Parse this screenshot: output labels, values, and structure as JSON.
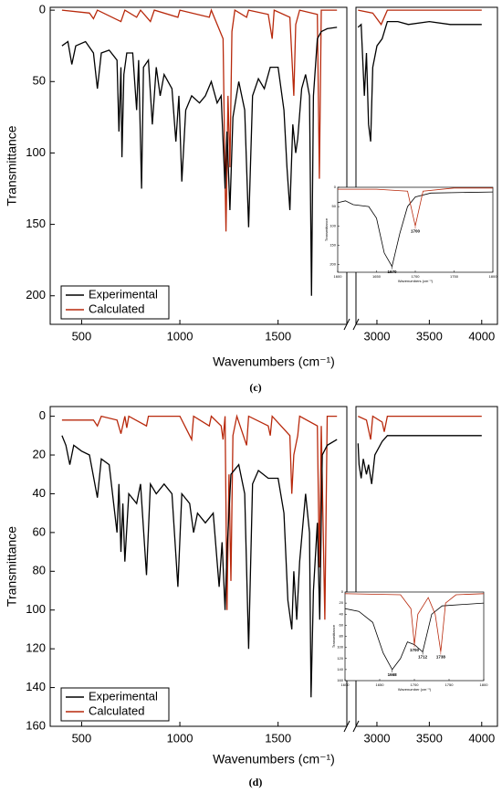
{
  "chart_data": [
    {
      "type": "line",
      "panel_label": "(c)",
      "xlabel": "Wavenumbers (cm⁻¹)",
      "ylabel": "Transmittance",
      "xlim": [
        340,
        4150
      ],
      "xbreak": [
        1850,
        2800
      ],
      "xticks": [
        500,
        1000,
        1500,
        3000,
        3500,
        4000
      ],
      "ylim": [
        -2,
        220
      ],
      "y_inverted": true,
      "yticks": [
        0,
        50,
        100,
        150,
        200
      ],
      "legend": "lower left",
      "series": [
        {
          "name": "Experimental",
          "color": "#000000",
          "x": [
            400,
            430,
            450,
            470,
            520,
            560,
            580,
            600,
            640,
            680,
            690,
            700,
            705,
            715,
            730,
            760,
            780,
            790,
            805,
            815,
            840,
            860,
            880,
            900,
            920,
            960,
            980,
            995,
            1010,
            1030,
            1060,
            1100,
            1130,
            1160,
            1190,
            1210,
            1230,
            1240,
            1255,
            1270,
            1300,
            1330,
            1350,
            1370,
            1400,
            1430,
            1460,
            1500,
            1530,
            1545,
            1560,
            1575,
            1590,
            1600,
            1620,
            1640,
            1660,
            1670,
            1680,
            1700,
            1720,
            1750,
            1800,
            2820,
            2850,
            2880,
            2900,
            2920,
            2940,
            2960,
            3000,
            3050,
            3100,
            3200,
            3300,
            3500,
            3700,
            4000
          ],
          "values": [
            25,
            22,
            38,
            25,
            22,
            30,
            55,
            30,
            28,
            35,
            85,
            40,
            103,
            45,
            30,
            30,
            70,
            35,
            125,
            40,
            35,
            80,
            40,
            60,
            45,
            55,
            92,
            60,
            120,
            70,
            60,
            65,
            60,
            50,
            65,
            60,
            125,
            85,
            140,
            75,
            50,
            70,
            152,
            60,
            48,
            55,
            40,
            40,
            70,
            110,
            140,
            80,
            100,
            90,
            55,
            45,
            60,
            200,
            60,
            20,
            15,
            13,
            12,
            12,
            10,
            60,
            30,
            80,
            92,
            40,
            25,
            20,
            8,
            8,
            10,
            8,
            10,
            10
          ]
        },
        {
          "name": "Calculated",
          "color": "#b8290c",
          "x": [
            400,
            540,
            560,
            580,
            700,
            720,
            780,
            800,
            850,
            870,
            990,
            1000,
            1150,
            1160,
            1220,
            1230,
            1235,
            1245,
            1255,
            1265,
            1280,
            1340,
            1350,
            1450,
            1470,
            1480,
            1560,
            1580,
            1590,
            1610,
            1700,
            1710,
            1720,
            1800,
            2820,
            2960,
            3040,
            3100,
            4000
          ],
          "values": [
            0,
            2,
            6,
            0,
            8,
            0,
            5,
            0,
            8,
            0,
            5,
            0,
            5,
            0,
            20,
            120,
            155,
            60,
            110,
            15,
            0,
            5,
            0,
            3,
            20,
            0,
            5,
            60,
            10,
            0,
            3,
            118,
            0,
            0,
            0,
            2,
            10,
            0,
            0
          ]
        }
      ],
      "inset": {
        "xlabel": "Wavenumbers (cm⁻¹)",
        "ylabel": "Transmittance",
        "xlim": [
          1600,
          1800
        ],
        "xticks": [
          1600,
          1650,
          1700,
          1750,
          1800
        ],
        "ylim": [
          0,
          220
        ],
        "yticks": [
          0,
          50,
          100,
          150,
          200
        ],
        "series": [
          {
            "color": "#000000",
            "x": [
              1600,
              1610,
              1620,
              1640,
              1650,
              1660,
              1670,
              1680,
              1690,
              1700,
              1720,
              1800
            ],
            "values": [
              40,
              35,
              45,
              50,
              80,
              170,
              205,
              120,
              50,
              25,
              15,
              12
            ]
          },
          {
            "color": "#b8290c",
            "x": [
              1600,
              1650,
              1690,
              1700,
              1710,
              1750,
              1800
            ],
            "values": [
              5,
              5,
              10,
              100,
              10,
              2,
              2
            ]
          }
        ],
        "annotations": [
          {
            "label": "1670",
            "x": 1670,
            "y": 205,
            "color": "#000000"
          },
          {
            "label": "1700",
            "x": 1700,
            "y": 100,
            "color": "#b8290c"
          }
        ]
      }
    },
    {
      "type": "line",
      "panel_label": "(d)",
      "xlabel": "Wavenumbers (cm⁻¹)",
      "ylabel": "Transmittance",
      "xlim": [
        340,
        4150
      ],
      "xbreak": [
        1850,
        2800
      ],
      "xticks": [
        500,
        1000,
        1500,
        3000,
        3500,
        4000
      ],
      "ylim": [
        -5,
        160
      ],
      "y_inverted": true,
      "yticks": [
        0,
        20,
        40,
        60,
        80,
        100,
        120,
        140,
        160
      ],
      "legend": "lower left",
      "series": [
        {
          "name": "Experimental",
          "color": "#000000",
          "x": [
            400,
            420,
            440,
            460,
            500,
            540,
            580,
            600,
            640,
            680,
            690,
            700,
            710,
            720,
            740,
            780,
            800,
            830,
            850,
            880,
            920,
            960,
            990,
            1010,
            1050,
            1070,
            1090,
            1130,
            1170,
            1200,
            1215,
            1230,
            1240,
            1260,
            1300,
            1330,
            1350,
            1370,
            1400,
            1450,
            1500,
            1530,
            1550,
            1570,
            1580,
            1595,
            1610,
            1640,
            1660,
            1668,
            1680,
            1700,
            1712,
            1725,
            1750,
            1800,
            2820,
            2830,
            2850,
            2870,
            2900,
            2920,
            2950,
            2980,
            3050,
            3100,
            3500,
            4000
          ],
          "values": [
            10,
            15,
            25,
            15,
            18,
            20,
            42,
            22,
            25,
            60,
            35,
            70,
            45,
            75,
            40,
            45,
            35,
            82,
            35,
            40,
            35,
            40,
            88,
            40,
            45,
            60,
            50,
            55,
            50,
            88,
            65,
            100,
            70,
            30,
            25,
            40,
            120,
            35,
            28,
            32,
            32,
            50,
            95,
            110,
            80,
            105,
            75,
            40,
            60,
            145,
            90,
            55,
            105,
            20,
            15,
            12,
            14,
            25,
            32,
            22,
            30,
            25,
            35,
            20,
            13,
            10,
            10,
            10
          ]
        },
        {
          "name": "Calculated",
          "color": "#b8290c",
          "x": [
            400,
            560,
            580,
            600,
            680,
            700,
            720,
            730,
            740,
            830,
            840,
            1000,
            1060,
            1070,
            1150,
            1160,
            1210,
            1220,
            1230,
            1240,
            1250,
            1260,
            1270,
            1290,
            1340,
            1350,
            1450,
            1460,
            1470,
            1560,
            1570,
            1580,
            1600,
            1610,
            1700,
            1710,
            1720,
            1738,
            1750,
            1800,
            2820,
            2900,
            2940,
            2960,
            3050,
            3070,
            3100,
            4000
          ],
          "values": [
            2,
            2,
            5,
            0,
            2,
            9,
            0,
            6,
            0,
            5,
            0,
            0,
            12,
            0,
            5,
            0,
            5,
            12,
            0,
            100,
            30,
            85,
            10,
            0,
            15,
            0,
            5,
            10,
            0,
            10,
            40,
            20,
            10,
            0,
            5,
            78,
            5,
            105,
            0,
            0,
            0,
            2,
            12,
            0,
            3,
            8,
            0,
            0
          ]
        }
      ],
      "inset": {
        "xlabel": "Wavenumber (cm⁻¹)",
        "ylabel": "Transmittance",
        "xlim": [
          1600,
          1800
        ],
        "xticks": [
          1600,
          1650,
          1700,
          1750,
          1800
        ],
        "ylim": [
          0,
          160
        ],
        "yticks": [
          0,
          20,
          40,
          60,
          80,
          100,
          120,
          140,
          160
        ],
        "series": [
          {
            "color": "#000000",
            "x": [
              1600,
              1620,
              1640,
              1655,
              1668,
              1680,
              1690,
              1700,
              1712,
              1725,
              1740,
              1800
            ],
            "values": [
              30,
              35,
              55,
              110,
              140,
              120,
              90,
              95,
              108,
              40,
              25,
              20
            ]
          },
          {
            "color": "#b8290c",
            "x": [
              1600,
              1680,
              1695,
              1700,
              1705,
              1720,
              1730,
              1738,
              1745,
              1760,
              1800
            ],
            "values": [
              3,
              5,
              30,
              95,
              40,
              10,
              40,
              108,
              20,
              5,
              3
            ]
          }
        ],
        "annotations": [
          {
            "label": "1668",
            "x": 1668,
            "y": 140,
            "color": "#000000"
          },
          {
            "label": "1700",
            "x": 1700,
            "y": 95,
            "color": "#b8290c"
          },
          {
            "label": "1712",
            "x": 1712,
            "y": 108,
            "color": "#000000"
          },
          {
            "label": "1738",
            "x": 1738,
            "y": 108,
            "color": "#b8290c"
          }
        ]
      }
    }
  ]
}
